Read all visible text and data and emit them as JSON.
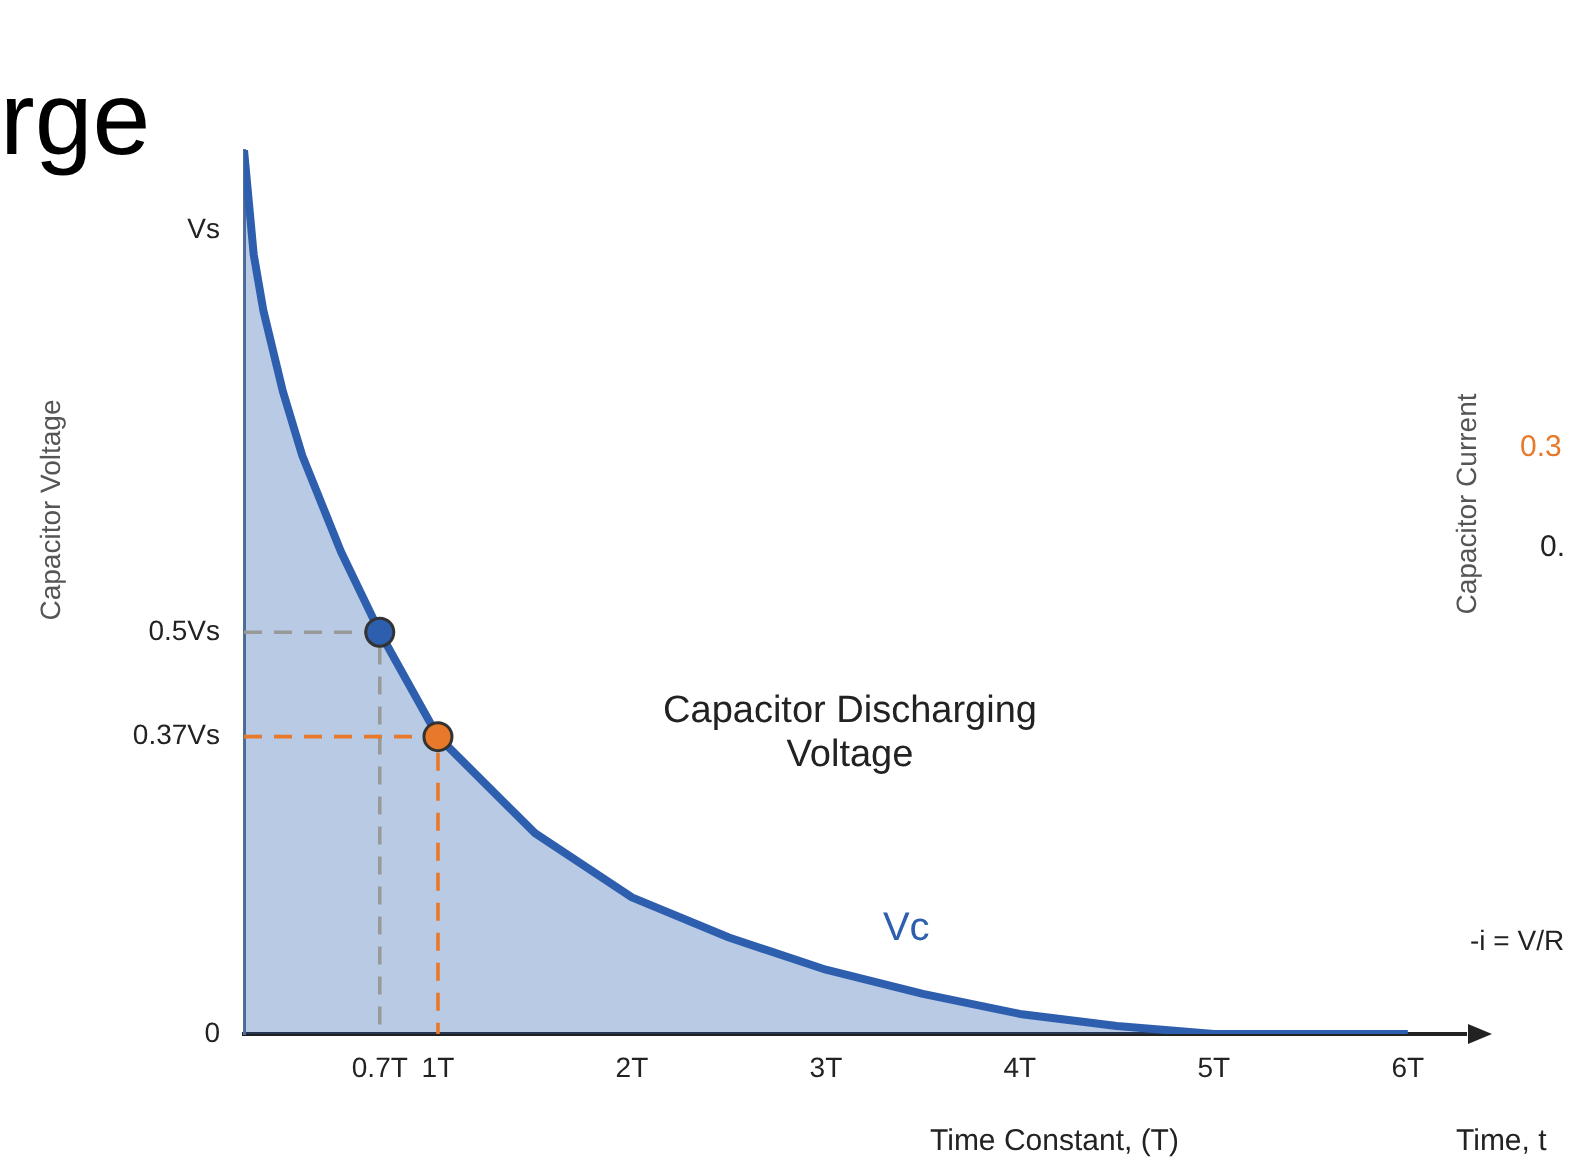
{
  "chart_data": {
    "type": "area",
    "title": "rge",
    "ylabel": "Capacitor Voltage",
    "xlabel": "Time Constant, (T)",
    "y2label": "Capacitor Current",
    "annotations": [
      "Time, t",
      "0.3",
      "0.",
      "-i = V/R",
      "Capacitor Discharging Voltage"
    ],
    "xlim": [
      0,
      6.3
    ],
    "ylim": [
      0,
      1.1
    ],
    "xticks": [
      {
        "value": 0.7,
        "label": "0.7T"
      },
      {
        "value": 1,
        "label": "1T"
      },
      {
        "value": 2,
        "label": "2T"
      },
      {
        "value": 3,
        "label": "3T"
      },
      {
        "value": 4,
        "label": "4T"
      },
      {
        "value": 5,
        "label": "5T"
      },
      {
        "value": 6,
        "label": "6T"
      }
    ],
    "yticks": [
      0,
      {
        "value": 0.37,
        "label": "0.37Vs"
      },
      {
        "value": 0.5,
        "label": "0.5Vs"
      },
      {
        "value": 1,
        "label": "Vs"
      }
    ],
    "grid": false,
    "legend": false,
    "series": [
      {
        "name": "Vc",
        "color": "#2e5fae",
        "marker": "none",
        "x": [
          0,
          0.05,
          0.1,
          0.2,
          0.3,
          0.5,
          0.7,
          1,
          1.5,
          2,
          2.5,
          3,
          3.5,
          4,
          4.5,
          5,
          6
        ],
        "values": [
          1.1,
          0.97,
          0.9,
          0.8,
          0.72,
          0.6,
          0.5,
          0.37,
          0.25,
          0.17,
          0.12,
          0.08,
          0.05,
          0.025,
          0.01,
          0,
          0
        ]
      },
      {
        "type": "line",
        "color": "#999999",
        "line_style": "dashed",
        "marker": "none",
        "x": [
          0,
          0.7,
          0.7
        ],
        "values": [
          0.5,
          0.5,
          0
        ]
      },
      {
        "type": "line",
        "color": "#e8782a",
        "line_style": "dashed",
        "marker": "none",
        "x": [
          0,
          1,
          1
        ],
        "values": [
          0.37,
          0.37,
          0
        ]
      },
      {
        "type": "scatter",
        "color": "#2e5fae",
        "marker": "circle",
        "x": [
          0.7
        ],
        "values": [
          0.5
        ]
      },
      {
        "type": "scatter",
        "color": "#e8782a",
        "marker": "circle",
        "x": [
          1
        ],
        "values": [
          0.37
        ]
      }
    ]
  }
}
